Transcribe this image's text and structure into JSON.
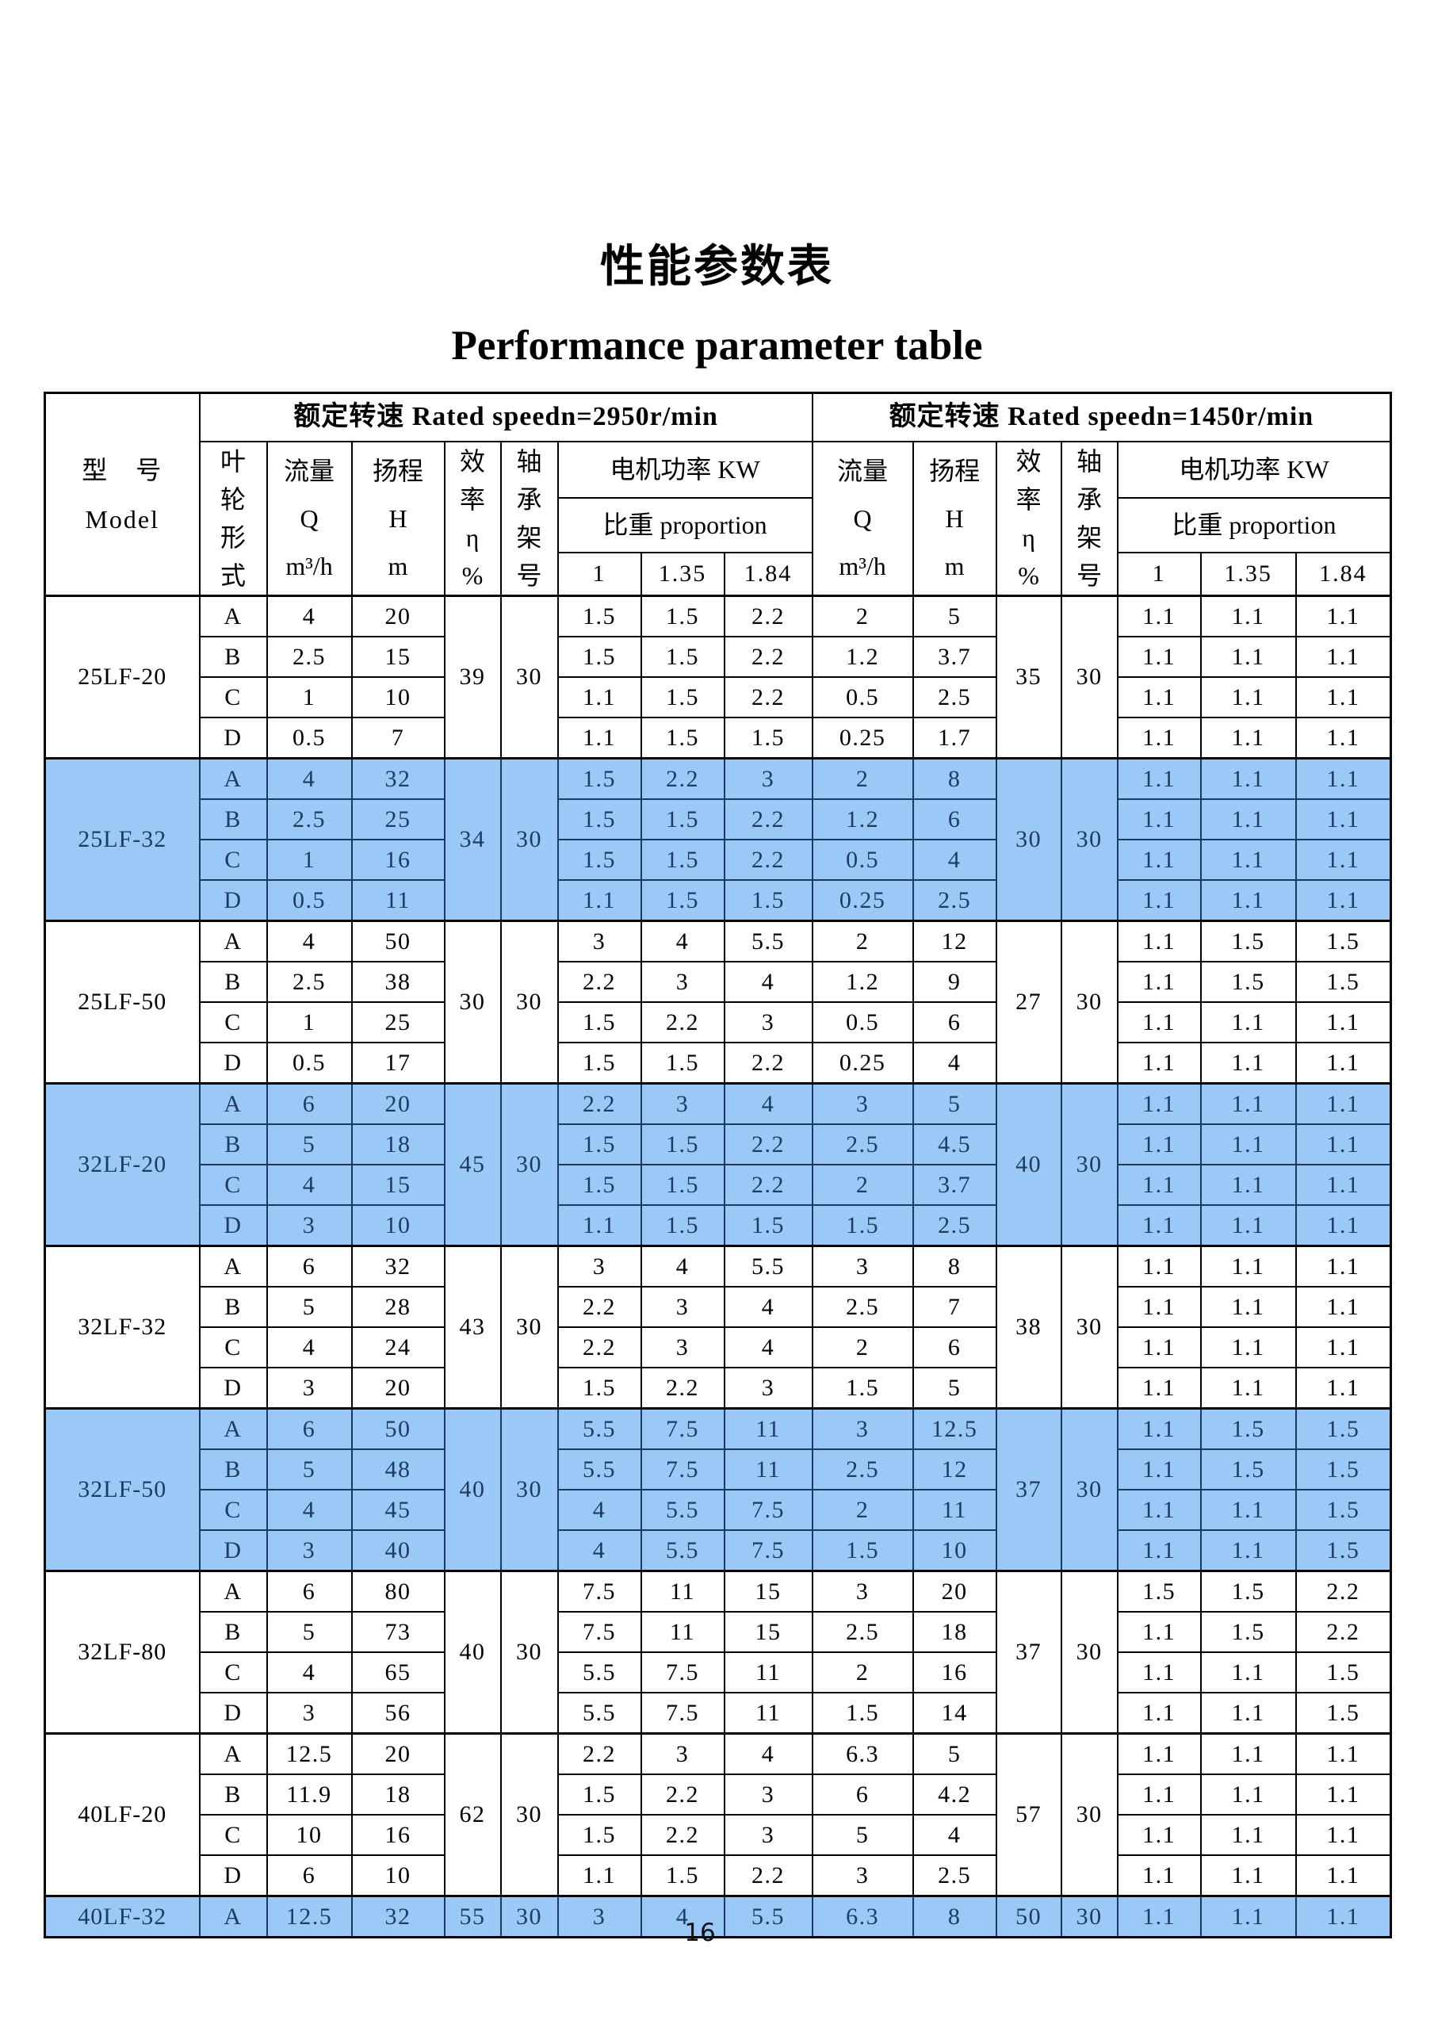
{
  "page": {
    "title_zh": "性能参数表",
    "title_en": "Performance parameter table",
    "page_number": "16"
  },
  "colors": {
    "highlight_row": "#9ac9f7",
    "border": "#000000"
  },
  "table": {
    "headers": {
      "model": "型　号\nModel",
      "group_2950": "额定转速 Rated speedn=2950r/min",
      "group_1450": "额定转速 Rated speedn=1450r/min",
      "impeller": "叶\n轮\n形\n式",
      "flow": "流量\nQ\nm³/h",
      "head": "扬程\nH\nm",
      "efficiency": "效\n率\nη\n%",
      "bearing": "轴\n承\n架\n号",
      "motor_power": "电机功率 KW",
      "proportion": "比重 proportion",
      "ratios": [
        "1",
        "1.35",
        "1.84"
      ]
    },
    "blocks": [
      {
        "model": "25LF-20",
        "highlight": false,
        "eff_2950": "39",
        "brg_2950": "30",
        "eff_1450": "35",
        "brg_1450": "30",
        "rows": [
          [
            "A",
            "4",
            "20",
            "1.5",
            "1.5",
            "2.2",
            "2",
            "5",
            "1.1",
            "1.1",
            "1.1"
          ],
          [
            "B",
            "2.5",
            "15",
            "1.5",
            "1.5",
            "2.2",
            "1.2",
            "3.7",
            "1.1",
            "1.1",
            "1.1"
          ],
          [
            "C",
            "1",
            "10",
            "1.1",
            "1.5",
            "2.2",
            "0.5",
            "2.5",
            "1.1",
            "1.1",
            "1.1"
          ],
          [
            "D",
            "0.5",
            "7",
            "1.1",
            "1.5",
            "1.5",
            "0.25",
            "1.7",
            "1.1",
            "1.1",
            "1.1"
          ]
        ]
      },
      {
        "model": "25LF-32",
        "highlight": true,
        "eff_2950": "34",
        "brg_2950": "30",
        "eff_1450": "30",
        "brg_1450": "30",
        "rows": [
          [
            "A",
            "4",
            "32",
            "1.5",
            "2.2",
            "3",
            "2",
            "8",
            "1.1",
            "1.1",
            "1.1"
          ],
          [
            "B",
            "2.5",
            "25",
            "1.5",
            "1.5",
            "2.2",
            "1.2",
            "6",
            "1.1",
            "1.1",
            "1.1"
          ],
          [
            "C",
            "1",
            "16",
            "1.5",
            "1.5",
            "2.2",
            "0.5",
            "4",
            "1.1",
            "1.1",
            "1.1"
          ],
          [
            "D",
            "0.5",
            "11",
            "1.1",
            "1.5",
            "1.5",
            "0.25",
            "2.5",
            "1.1",
            "1.1",
            "1.1"
          ]
        ]
      },
      {
        "model": "25LF-50",
        "highlight": false,
        "eff_2950": "30",
        "brg_2950": "30",
        "eff_1450": "27",
        "brg_1450": "30",
        "rows": [
          [
            "A",
            "4",
            "50",
            "3",
            "4",
            "5.5",
            "2",
            "12",
            "1.1",
            "1.5",
            "1.5"
          ],
          [
            "B",
            "2.5",
            "38",
            "2.2",
            "3",
            "4",
            "1.2",
            "9",
            "1.1",
            "1.5",
            "1.5"
          ],
          [
            "C",
            "1",
            "25",
            "1.5",
            "2.2",
            "3",
            "0.5",
            "6",
            "1.1",
            "1.1",
            "1.1"
          ],
          [
            "D",
            "0.5",
            "17",
            "1.5",
            "1.5",
            "2.2",
            "0.25",
            "4",
            "1.1",
            "1.1",
            "1.1"
          ]
        ]
      },
      {
        "model": "32LF-20",
        "highlight": true,
        "eff_2950": "45",
        "brg_2950": "30",
        "eff_1450": "40",
        "brg_1450": "30",
        "rows": [
          [
            "A",
            "6",
            "20",
            "2.2",
            "3",
            "4",
            "3",
            "5",
            "1.1",
            "1.1",
            "1.1"
          ],
          [
            "B",
            "5",
            "18",
            "1.5",
            "1.5",
            "2.2",
            "2.5",
            "4.5",
            "1.1",
            "1.1",
            "1.1"
          ],
          [
            "C",
            "4",
            "15",
            "1.5",
            "1.5",
            "2.2",
            "2",
            "3.7",
            "1.1",
            "1.1",
            "1.1"
          ],
          [
            "D",
            "3",
            "10",
            "1.1",
            "1.5",
            "1.5",
            "1.5",
            "2.5",
            "1.1",
            "1.1",
            "1.1"
          ]
        ]
      },
      {
        "model": "32LF-32",
        "highlight": false,
        "eff_2950": "43",
        "brg_2950": "30",
        "eff_1450": "38",
        "brg_1450": "30",
        "rows": [
          [
            "A",
            "6",
            "32",
            "3",
            "4",
            "5.5",
            "3",
            "8",
            "1.1",
            "1.1",
            "1.1"
          ],
          [
            "B",
            "5",
            "28",
            "2.2",
            "3",
            "4",
            "2.5",
            "7",
            "1.1",
            "1.1",
            "1.1"
          ],
          [
            "C",
            "4",
            "24",
            "2.2",
            "3",
            "4",
            "2",
            "6",
            "1.1",
            "1.1",
            "1.1"
          ],
          [
            "D",
            "3",
            "20",
            "1.5",
            "2.2",
            "3",
            "1.5",
            "5",
            "1.1",
            "1.1",
            "1.1"
          ]
        ]
      },
      {
        "model": "32LF-50",
        "highlight": true,
        "eff_2950": "40",
        "brg_2950": "30",
        "eff_1450": "37",
        "brg_1450": "30",
        "rows": [
          [
            "A",
            "6",
            "50",
            "5.5",
            "7.5",
            "11",
            "3",
            "12.5",
            "1.1",
            "1.5",
            "1.5"
          ],
          [
            "B",
            "5",
            "48",
            "5.5",
            "7.5",
            "11",
            "2.5",
            "12",
            "1.1",
            "1.5",
            "1.5"
          ],
          [
            "C",
            "4",
            "45",
            "4",
            "5.5",
            "7.5",
            "2",
            "11",
            "1.1",
            "1.1",
            "1.5"
          ],
          [
            "D",
            "3",
            "40",
            "4",
            "5.5",
            "7.5",
            "1.5",
            "10",
            "1.1",
            "1.1",
            "1.5"
          ]
        ]
      },
      {
        "model": "32LF-80",
        "highlight": false,
        "eff_2950": "40",
        "brg_2950": "30",
        "eff_1450": "37",
        "brg_1450": "30",
        "rows": [
          [
            "A",
            "6",
            "80",
            "7.5",
            "11",
            "15",
            "3",
            "20",
            "1.5",
            "1.5",
            "2.2"
          ],
          [
            "B",
            "5",
            "73",
            "7.5",
            "11",
            "15",
            "2.5",
            "18",
            "1.1",
            "1.5",
            "2.2"
          ],
          [
            "C",
            "4",
            "65",
            "5.5",
            "7.5",
            "11",
            "2",
            "16",
            "1.1",
            "1.1",
            "1.5"
          ],
          [
            "D",
            "3",
            "56",
            "5.5",
            "7.5",
            "11",
            "1.5",
            "14",
            "1.1",
            "1.1",
            "1.5"
          ]
        ]
      },
      {
        "model": "40LF-20",
        "highlight": false,
        "eff_2950": "62",
        "brg_2950": "30",
        "eff_1450": "57",
        "brg_1450": "30",
        "rows": [
          [
            "A",
            "12.5",
            "20",
            "2.2",
            "3",
            "4",
            "6.3",
            "5",
            "1.1",
            "1.1",
            "1.1"
          ],
          [
            "B",
            "11.9",
            "18",
            "1.5",
            "2.2",
            "3",
            "6",
            "4.2",
            "1.1",
            "1.1",
            "1.1"
          ],
          [
            "C",
            "10",
            "16",
            "1.5",
            "2.2",
            "3",
            "5",
            "4",
            "1.1",
            "1.1",
            "1.1"
          ],
          [
            "D",
            "6",
            "10",
            "1.1",
            "1.5",
            "2.2",
            "3",
            "2.5",
            "1.1",
            "1.1",
            "1.1"
          ]
        ]
      },
      {
        "model": "40LF-32",
        "highlight": true,
        "eff_2950": "55",
        "brg_2950": "30",
        "eff_1450": "50",
        "brg_1450": "30",
        "rows": [
          [
            "A",
            "12.5",
            "32",
            "3",
            "4",
            "5.5",
            "6.3",
            "8",
            "1.1",
            "1.1",
            "1.1"
          ]
        ]
      }
    ]
  }
}
